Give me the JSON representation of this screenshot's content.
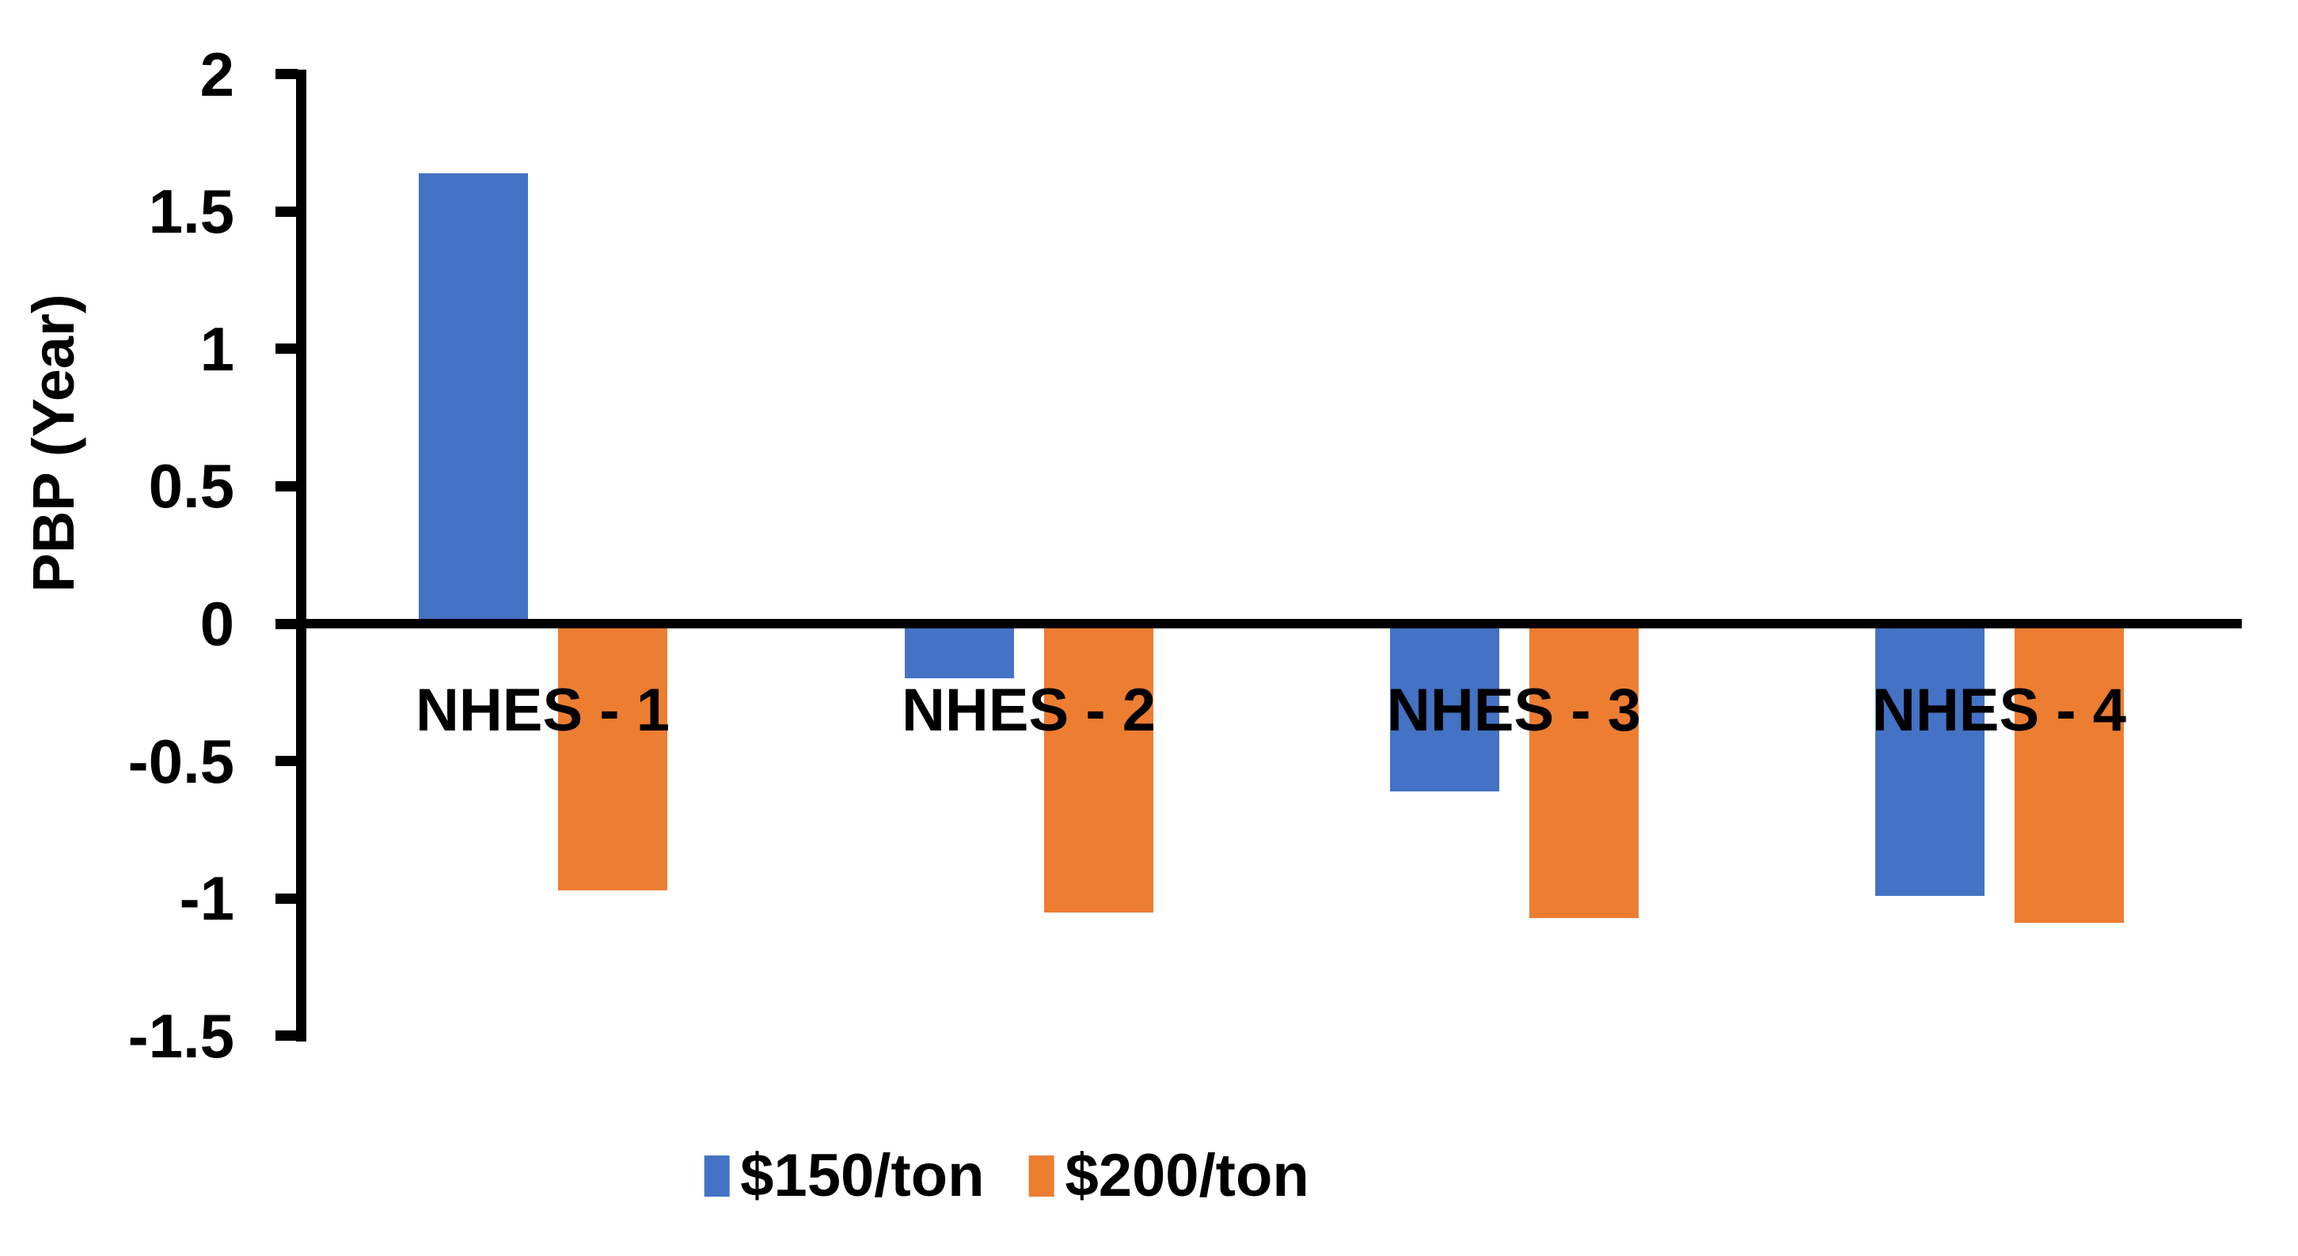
{
  "chart_data": {
    "type": "bar",
    "title": "",
    "ylabel": "PBP (Year)",
    "xlabel": "",
    "categories": [
      "NHES - 1",
      "NHES - 2",
      "NHES - 3",
      "NHES - 4"
    ],
    "series": [
      {
        "name": "$150/ton",
        "color": "#4472C4",
        "values": [
          1.64,
          -0.2,
          -0.61,
          -0.99
        ]
      },
      {
        "name": "$200/ton",
        "color": "#ED7D31",
        "values": [
          -0.97,
          -1.05,
          -1.07,
          -1.09
        ]
      }
    ],
    "ylim": [
      -1.5,
      2
    ],
    "yticks": [
      2,
      1.5,
      1,
      0.5,
      0,
      -0.5,
      -1,
      -1.5
    ],
    "grid": false,
    "legend_position": "bottom",
    "axis_color": "#000000",
    "text_color": "#000000",
    "background_color": "#FFFFFF"
  }
}
